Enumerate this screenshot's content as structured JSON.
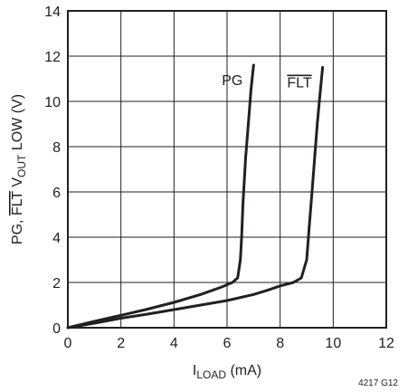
{
  "chart_data": {
    "type": "line",
    "xlabel": {
      "base": "I",
      "sub": "LOAD",
      "unit": " (mA)"
    },
    "ylabel": {
      "prefix": "PG, ",
      "over": "FLT",
      "mid": " V",
      "sub": "OUT",
      "suffix": " LOW (V)"
    },
    "xlim": [
      0,
      12
    ],
    "ylim": [
      0,
      14
    ],
    "xticks": [
      0,
      2,
      4,
      6,
      8,
      10,
      12
    ],
    "yticks": [
      0,
      2,
      4,
      6,
      8,
      10,
      12,
      14
    ],
    "grid": true,
    "figure_id": "4217 G12",
    "series": [
      {
        "name": "PG",
        "overline": false,
        "x": [
          0,
          1,
          2,
          3,
          4,
          5,
          5.8,
          6.2,
          6.4,
          6.5,
          6.55,
          6.6,
          6.7,
          6.8,
          6.9,
          7.0
        ],
        "y": [
          0,
          0.28,
          0.55,
          0.82,
          1.12,
          1.47,
          1.8,
          2.0,
          2.2,
          3.0,
          4.0,
          5.5,
          7.5,
          9.0,
          10.5,
          11.6
        ]
      },
      {
        "name": "FLT",
        "overline": true,
        "x": [
          0,
          1,
          2,
          3,
          4,
          5,
          6,
          7,
          7.5,
          8,
          8.5,
          8.8,
          9.0,
          9.1,
          9.2,
          9.3,
          9.4,
          9.5,
          9.6
        ],
        "y": [
          0,
          0.2,
          0.42,
          0.6,
          0.8,
          1.0,
          1.2,
          1.47,
          1.65,
          1.85,
          2.0,
          2.2,
          3.0,
          4.5,
          6.0,
          7.5,
          9.0,
          10.3,
          11.5
        ]
      }
    ]
  }
}
